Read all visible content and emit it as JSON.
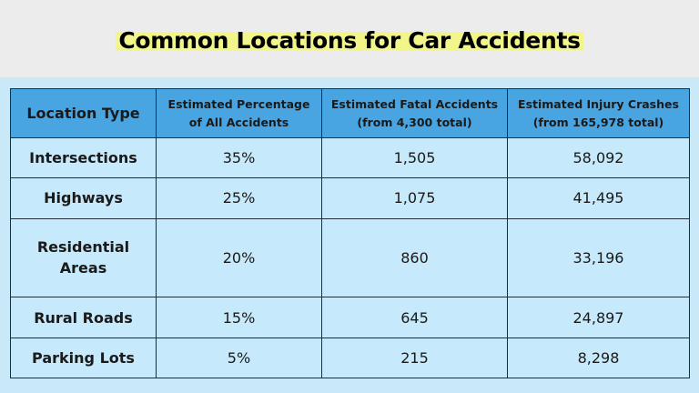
{
  "header": {
    "title": "Common Locations for Car Accidents"
  },
  "table": {
    "columns": [
      [
        "Location Type"
      ],
      [
        "Estimated Percentage",
        "of All Accidents"
      ],
      [
        "Estimated Fatal Accidents",
        "(from 4,300 total)"
      ],
      [
        "Estimated Injury Crashes",
        "(from 165,978 total)"
      ]
    ],
    "rows": [
      [
        "Intersections",
        "35%",
        "1,505",
        "58,092"
      ],
      [
        "Highways",
        "25%",
        "1,075",
        "41,495"
      ],
      [
        "Residential Areas",
        "20%",
        "860",
        "33,196"
      ],
      [
        "Rural Roads",
        "15%",
        "645",
        "24,897"
      ],
      [
        "Parking Lots",
        "5%",
        "215",
        "8,298"
      ]
    ]
  }
}
